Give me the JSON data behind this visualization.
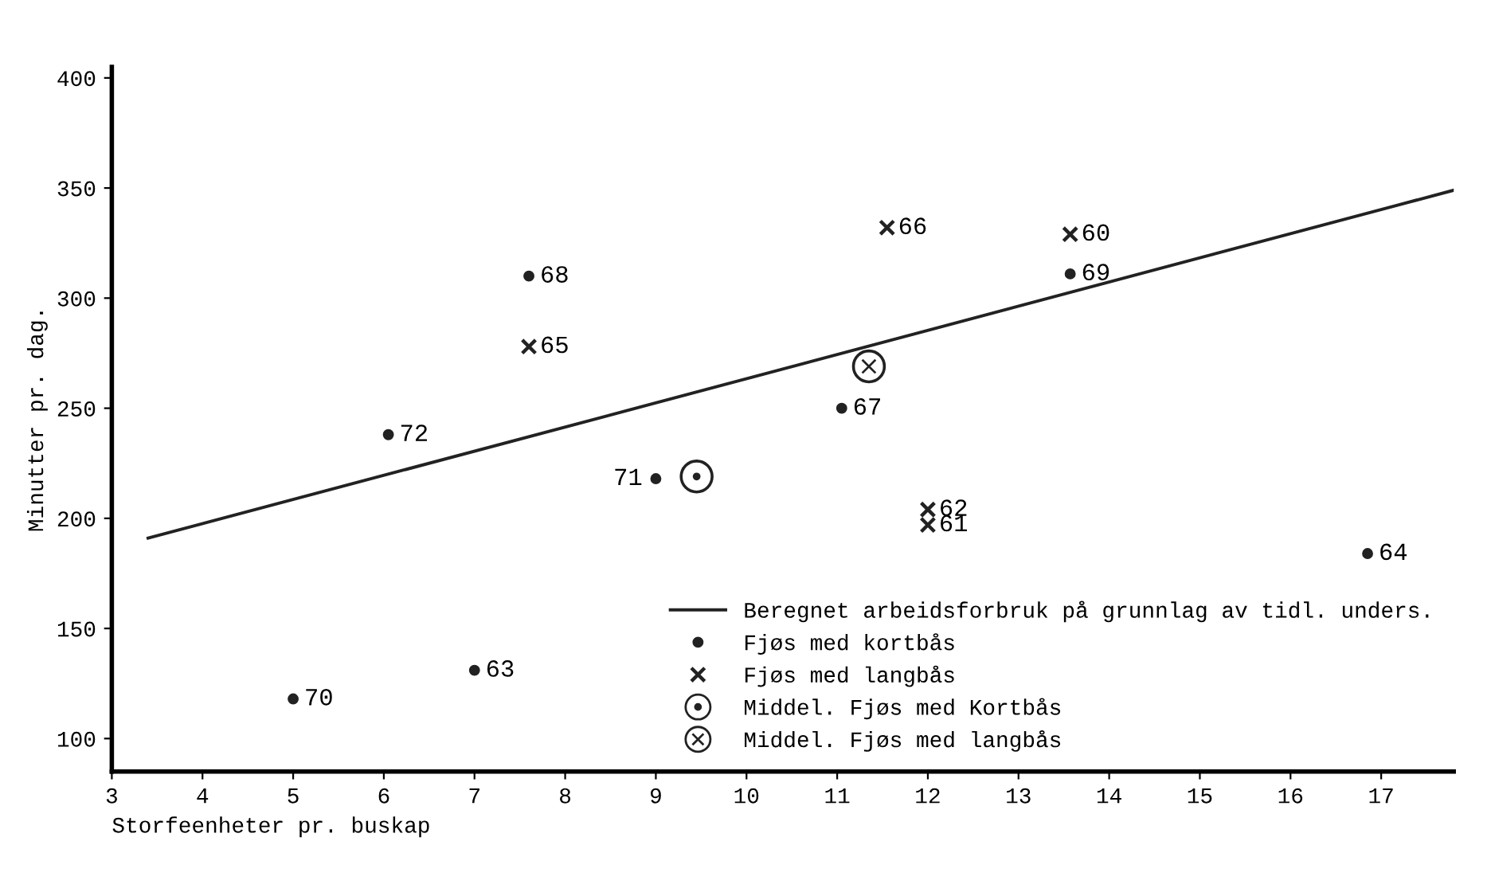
{
  "chart_data": {
    "type": "scatter",
    "xlabel": "Storfeenheter pr. buskap",
    "ylabel": "Minutter pr. dag.",
    "xlim": [
      3,
      17.8
    ],
    "xticks": [
      3,
      4,
      5,
      6,
      7,
      8,
      9,
      10,
      11,
      12,
      13,
      14,
      15,
      16,
      17
    ],
    "ylim": [
      85,
      405
    ],
    "yticks": [
      100,
      150,
      200,
      250,
      300,
      350,
      400
    ],
    "grid": false,
    "legend": "bottom right",
    "series": [
      {
        "name": "Beregnet arbeidsforbruk på grunnlag av tidl. unders.",
        "type": "line",
        "color": "#222222",
        "marker": "none",
        "line_style": "solid",
        "x": [
          3.4,
          17.8
        ],
        "values": [
          191,
          349
        ]
      },
      {
        "name": "Fjøs med kortbås",
        "color": "#222222",
        "marker": "circle",
        "x": [
          5.0,
          7.0,
          6.05,
          7.6,
          9.0,
          11.05,
          13.57,
          16.85
        ],
        "values": [
          118,
          131,
          238,
          310,
          218,
          250,
          311,
          184
        ]
      },
      {
        "name": "Fjøs med langbås",
        "color": "#222222",
        "marker": "cross",
        "x": [
          7.6,
          11.55,
          13.57,
          12.0,
          12.0
        ],
        "values": [
          278,
          332,
          329,
          204,
          197
        ]
      },
      {
        "name": "Middel. Fjøs med Kortbås",
        "color": "#222222",
        "marker": "circle-dot",
        "x": [
          9.45
        ],
        "values": [
          219
        ]
      },
      {
        "name": "Middel. Fjøs med langbås",
        "color": "#222222",
        "marker": "circle-cross",
        "x": [
          11.35
        ],
        "values": [
          269
        ]
      }
    ],
    "annotations": [
      {
        "text": "70",
        "x": 5.0,
        "y": 118
      },
      {
        "text": "63",
        "x": 7.0,
        "y": 131
      },
      {
        "text": "72",
        "x": 6.05,
        "y": 238
      },
      {
        "text": "68",
        "x": 7.6,
        "y": 310
      },
      {
        "text": "65",
        "x": 7.6,
        "y": 278
      },
      {
        "text": "71",
        "x": 9.0,
        "y": 218
      },
      {
        "text": "67",
        "x": 11.05,
        "y": 250
      },
      {
        "text": "66",
        "x": 11.55,
        "y": 332
      },
      {
        "text": "60",
        "x": 13.57,
        "y": 329
      },
      {
        "text": "69",
        "x": 13.57,
        "y": 311
      },
      {
        "text": "62",
        "x": 12.0,
        "y": 204
      },
      {
        "text": "61",
        "x": 12.0,
        "y": 197
      },
      {
        "text": "64",
        "x": 16.85,
        "y": 184
      }
    ]
  }
}
